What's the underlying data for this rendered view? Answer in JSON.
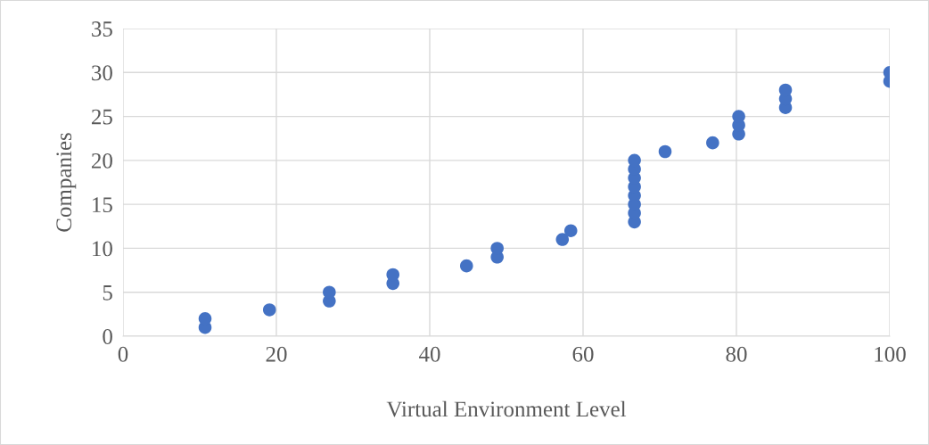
{
  "chart_data": {
    "type": "scatter",
    "xlabel": "Virtual Environment Level",
    "ylabel": "Companies",
    "x": [
      10.7,
      10.7,
      19.1,
      26.9,
      26.9,
      35.2,
      35.2,
      44.8,
      48.8,
      48.8,
      57.3,
      58.4,
      66.7,
      66.7,
      66.7,
      66.7,
      66.7,
      66.7,
      66.7,
      66.7,
      70.7,
      76.9,
      80.3,
      80.3,
      80.3,
      86.4,
      86.4,
      86.4,
      100,
      100
    ],
    "series": [
      {
        "color": "#4472c4",
        "values": [
          1,
          2,
          3,
          4,
          5,
          6,
          7,
          8,
          9,
          10,
          11,
          12,
          13,
          14,
          15,
          16,
          17,
          18,
          19,
          20,
          21,
          22,
          23,
          24,
          25,
          26,
          27,
          28,
          29,
          30
        ]
      }
    ],
    "xlim": [
      0,
      100
    ],
    "xticks": [
      0,
      20,
      40,
      60,
      80,
      100
    ],
    "ylim": [
      0,
      35
    ],
    "yticks": [
      0,
      5,
      10,
      15,
      20,
      25,
      30,
      35
    ],
    "grid": true,
    "marker": "circle"
  }
}
